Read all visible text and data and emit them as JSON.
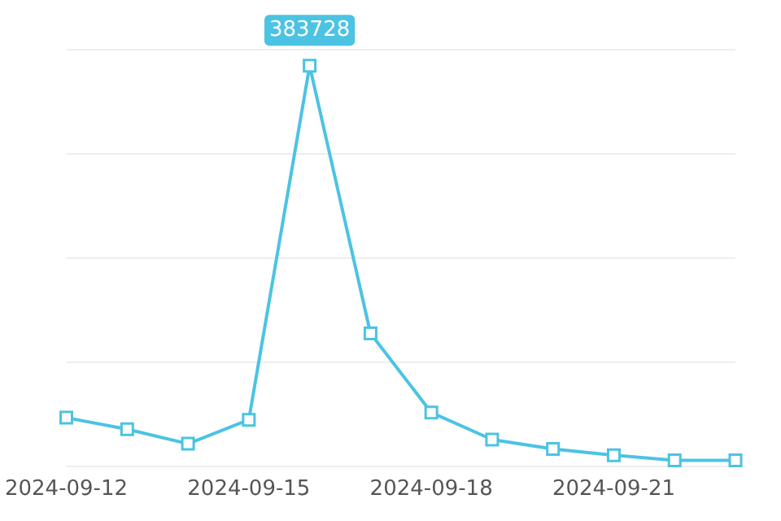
{
  "chart_data": {
    "type": "line",
    "categories": [
      "2024-09-12",
      null,
      null,
      "2024-09-15",
      null,
      null,
      "2024-09-18",
      null,
      null,
      "2024-09-21",
      null,
      null
    ],
    "ylim": [
      0,
      400000
    ],
    "yticks": [
      {
        "value": 0,
        "label": null
      },
      {
        "value": 100000,
        "label": null
      },
      {
        "value": 200000,
        "label": null
      },
      {
        "value": 300000,
        "label": null
      },
      {
        "value": 400000,
        "label": null
      }
    ],
    "tick_labels": "x",
    "series": [
      {
        "color": "#4cc3e2",
        "values": [
          46000,
          35000,
          21000,
          44000,
          383728,
          127000,
          51000,
          25000,
          16000,
          10000,
          5000,
          5000
        ],
        "value_labels": [
          null,
          null,
          null,
          null,
          "383728",
          null,
          null,
          null,
          null,
          null,
          null,
          null
        ]
      }
    ],
    "marker": "square",
    "line_style": "solid",
    "grid": "y"
  }
}
